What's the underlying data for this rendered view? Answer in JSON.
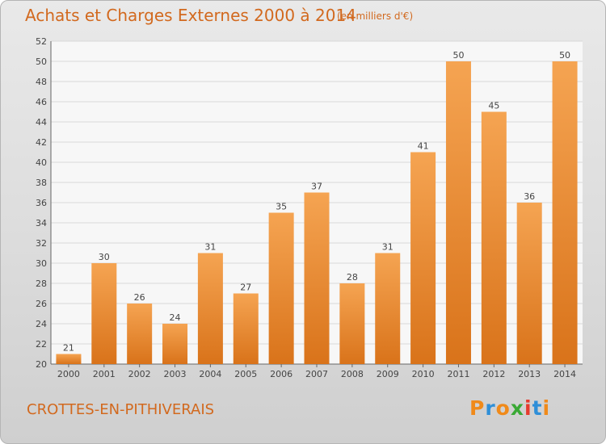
{
  "header": {
    "title": "Achats et Charges Externes 2000 à 2014",
    "subtitle": "(en milliers d'€)"
  },
  "footer": {
    "commune": "CROTTES-EN-PITHIVERAIS",
    "brand": "Proxiti"
  },
  "colors": {
    "bar_light": "#f5a452",
    "bar_dark": "#d9731a",
    "title": "#d2691e"
  },
  "chart_data": {
    "type": "bar",
    "title": "Achats et Charges Externes 2000 à 2014",
    "xlabel": "",
    "ylabel": "",
    "ylim": [
      20,
      52
    ],
    "yticks": [
      20,
      22,
      24,
      26,
      28,
      30,
      32,
      34,
      36,
      38,
      40,
      42,
      44,
      46,
      48,
      50,
      52
    ],
    "grid": true,
    "categories": [
      "2000",
      "2001",
      "2002",
      "2003",
      "2004",
      "2005",
      "2006",
      "2007",
      "2008",
      "2009",
      "2010",
      "2011",
      "2012",
      "2013",
      "2014"
    ],
    "values": [
      21,
      30,
      26,
      24,
      31,
      27,
      35,
      37,
      28,
      31,
      41,
      50,
      45,
      36,
      50
    ]
  }
}
